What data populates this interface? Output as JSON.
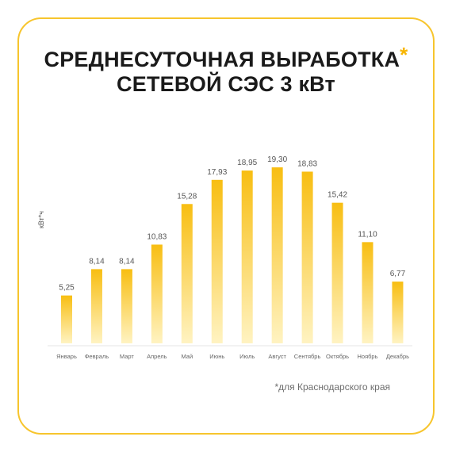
{
  "header": {
    "title_line1": "СРЕДНЕСУТОЧНАЯ ВЫРАБОТКА",
    "title_star": "*",
    "title_line2": "СЕТЕВОЙ СЭС 3 кВт"
  },
  "footnote": "*для Краснодарского края",
  "colors": {
    "accent": "#F7B500",
    "bar_top": "#F8BE12",
    "bar_bottom": "#FFF3C2",
    "frame": "#F7C52D"
  },
  "chart_data": {
    "type": "bar",
    "ylabel": "кВт*ч",
    "categories": [
      "Январь",
      "Февраль",
      "Март",
      "Апрель",
      "Май",
      "Июнь",
      "Июль",
      "Август",
      "Сентябрь",
      "Октябрь",
      "Ноябрь",
      "Декабрь"
    ],
    "values": [
      5.25,
      8.14,
      8.14,
      10.83,
      15.28,
      17.93,
      18.95,
      19.3,
      18.83,
      15.42,
      11.1,
      6.77
    ],
    "value_labels": [
      "5,25",
      "8,14",
      "8,14",
      "10,83",
      "15,28",
      "17,93",
      "18,95",
      "19,30",
      "18,83",
      "15,42",
      "11,10",
      "6,77"
    ],
    "ylim": [
      0,
      20
    ],
    "grid": false,
    "legend": "none"
  }
}
